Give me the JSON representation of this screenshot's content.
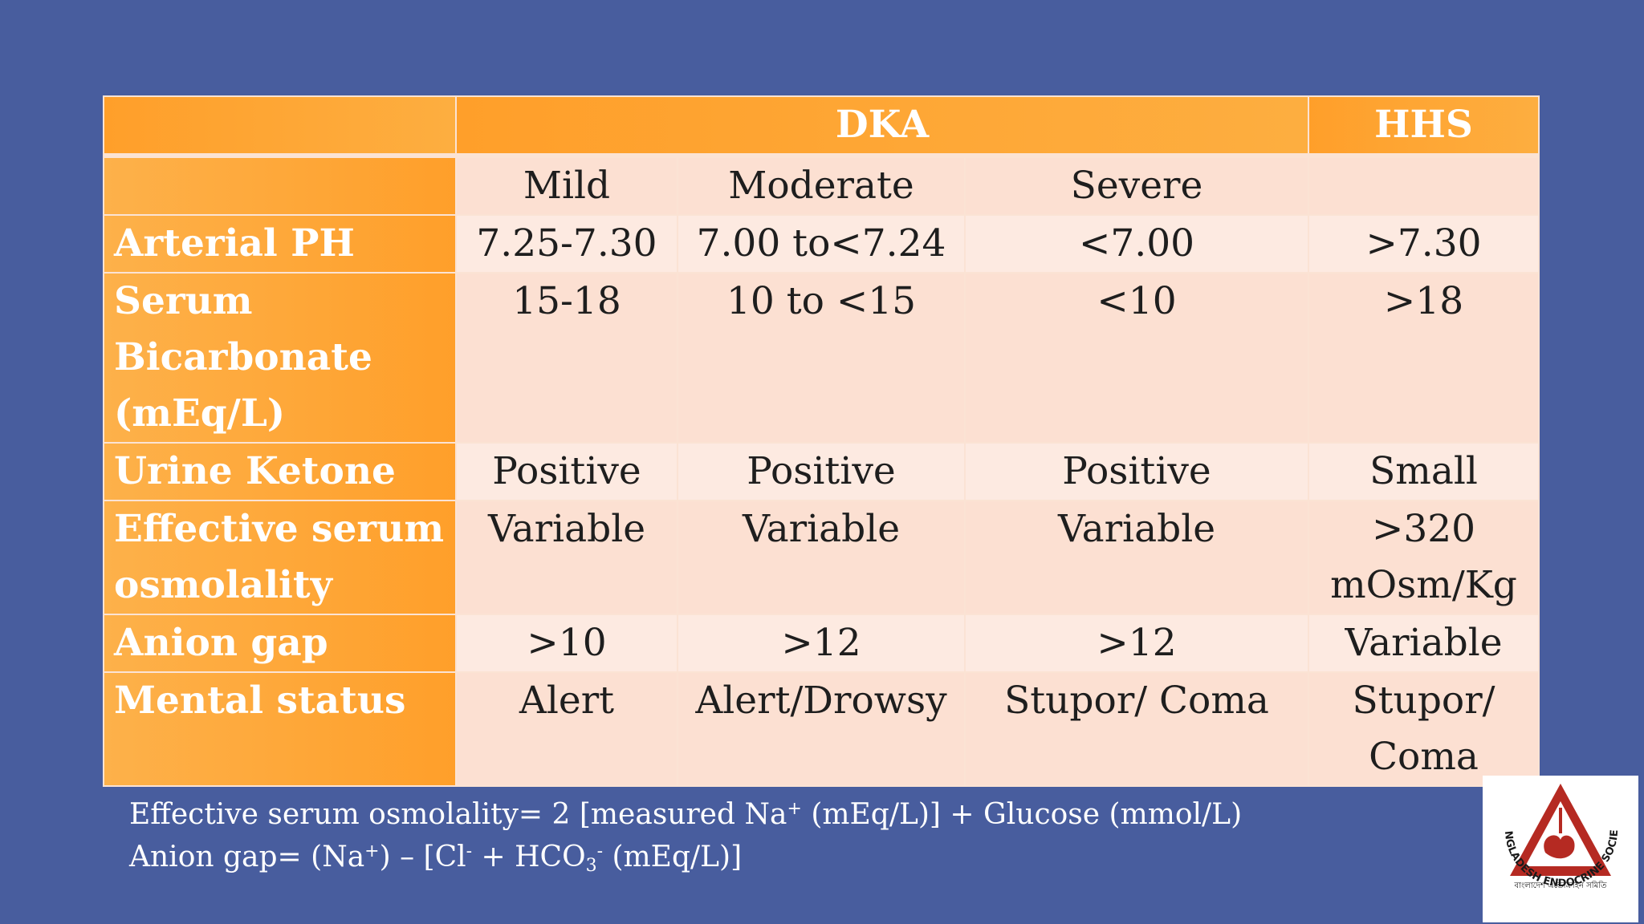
{
  "table": {
    "header_dka": "DKA",
    "header_hhs": "HHS",
    "subheaders": [
      "Mild",
      "Moderate",
      "Severe",
      ""
    ],
    "rows": [
      {
        "label": "Arterial PH",
        "values": [
          "7.25-7.30",
          "7.00 to<7.24",
          "<7.00",
          ">7.30"
        ]
      },
      {
        "label": "Serum Bicarbonate (mEq/L)",
        "values": [
          "15-18",
          "10 to <15",
          "<10",
          ">18"
        ]
      },
      {
        "label": "Urine Ketone",
        "values": [
          "Positive",
          "Positive",
          "Positive",
          "Small"
        ]
      },
      {
        "label": "Effective serum osmolality",
        "values": [
          "Variable",
          "Variable",
          "Variable",
          ">320 mOsm/Kg"
        ]
      },
      {
        "label": "Anion gap",
        "values": [
          ">10",
          ">12",
          ">12",
          "Variable"
        ]
      },
      {
        "label": "Mental status",
        "values": [
          "Alert",
          "Alert/Drowsy",
          "Stupor/ Coma",
          "Stupor/ Coma"
        ]
      }
    ]
  },
  "footnote": {
    "line1_a": "Effective serum osmolality= 2 [measured Na",
    "line1_sup": "+",
    "line1_b": " (mEq/L)] + Glucose (mmol/L)",
    "line2_a": "Anion gap= (Na",
    "line2_sup1": "+",
    "line2_b": ") – [Cl",
    "line2_sup2": "-",
    "line2_c": " + HCO",
    "line2_sub": "3",
    "line2_sup3": "-",
    "line2_d": " (mEq/L)]"
  },
  "logo": {
    "name": "BANGLADESH ENDOCRINE SOCIETY",
    "bengali_text": "বাংলাদেশ এন্ডোক্রাইন সমিতি",
    "colors": {
      "triangle": "#b52a22",
      "text": "#1a1a1a"
    }
  },
  "colors": {
    "background": "#485d9e",
    "header_orange": "#ff9f2a",
    "cell_light": "#fce0d2",
    "cell_lighter": "#fdeae1"
  }
}
